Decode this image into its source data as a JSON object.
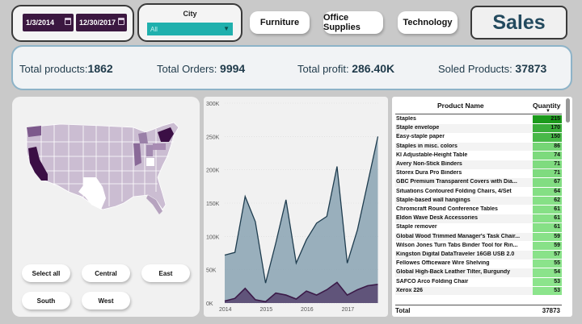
{
  "filters": {
    "start_date": "1/3/2014",
    "end_date": "12/30/2017",
    "city_title": "City",
    "city_value": "All"
  },
  "categories": [
    "Furniture",
    "Office Supplies",
    "Technology"
  ],
  "sales_button": "Sales",
  "kpis": {
    "total_products_label": "Total products:",
    "total_products_value": "1862",
    "total_orders_label": "Total Orders:",
    "total_orders_value": "9994",
    "total_profit_label": "Total profit:",
    "total_profit_value": "286.40K",
    "soled_products_label": "Soled Products:",
    "soled_products_value": "37873"
  },
  "regions": [
    "Select all",
    "Central",
    "East",
    "South",
    "West"
  ],
  "colors": {
    "area_fill": "#8aa3b3",
    "area_line": "#1f3d4f",
    "profit_fill": "#5a4a72",
    "profit_line": "#3b1a48",
    "map_dark": "#3b0f45",
    "bar_dark": "#1b9a1b",
    "bar_light": "#8ee58e"
  },
  "chart_data": {
    "type": "area",
    "x": [
      2014.0,
      2014.25,
      2014.5,
      2014.75,
      2015.0,
      2015.25,
      2015.5,
      2015.75,
      2016.0,
      2016.25,
      2016.5,
      2016.75,
      2017.0,
      2017.25,
      2017.5,
      2017.75
    ],
    "series": [
      {
        "values": [
          72000,
          76000,
          160000,
          122000,
          30000,
          90000,
          155000,
          60000,
          95000,
          120000,
          130000,
          205000,
          60000,
          110000,
          180000,
          250000
        ]
      },
      {
        "values": [
          3000,
          7000,
          22000,
          5000,
          2000,
          15000,
          12000,
          6000,
          18000,
          12000,
          20000,
          31000,
          12000,
          20000,
          26000,
          28000
        ]
      }
    ],
    "x_ticks": [
      "2014",
      "2015",
      "2016",
      "2017"
    ],
    "y_ticks": [
      "0K",
      "50K",
      "100K",
      "150K",
      "200K",
      "250K",
      "300K"
    ],
    "ylim": [
      0,
      300000
    ],
    "xlim": [
      2014.0,
      2017.8
    ]
  },
  "table": {
    "col_name": "Product Name",
    "col_qty": "Quantity",
    "rows": [
      {
        "name": "Staples",
        "qty": 215
      },
      {
        "name": "Staple envelope",
        "qty": 170
      },
      {
        "name": "Easy-staple paper",
        "qty": 150
      },
      {
        "name": "Staples in misc. colors",
        "qty": 86
      },
      {
        "name": "KI Adjustable-Height Table",
        "qty": 74
      },
      {
        "name": "Avery Non-Stick Binders",
        "qty": 71
      },
      {
        "name": "Storex Dura Pro Binders",
        "qty": 71
      },
      {
        "name": "GBC Premium Transparent Covers with Dia...",
        "qty": 67
      },
      {
        "name": "Situations Contoured Folding Chairs, 4/Set",
        "qty": 64
      },
      {
        "name": "Staple-based wall hangings",
        "qty": 62
      },
      {
        "name": "Chromcraft Round Conference Tables",
        "qty": 61
      },
      {
        "name": "Eldon Wave Desk Accessories",
        "qty": 61
      },
      {
        "name": "Staple remover",
        "qty": 61
      },
      {
        "name": "Global Wood Trimmed Manager's Task Chair...",
        "qty": 59
      },
      {
        "name": "Wilson Jones Turn Tabs Binder Tool for Rin...",
        "qty": 59
      },
      {
        "name": "Kingston Digital DataTraveler 16GB USB 2.0",
        "qty": 57
      },
      {
        "name": "Fellowes Officeware Wire Shelving",
        "qty": 55
      },
      {
        "name": "Global High-Back Leather Tilter, Burgundy",
        "qty": 54
      },
      {
        "name": "SAFCO Arco Folding Chair",
        "qty": 53
      },
      {
        "name": "Xerox 226",
        "qty": 53
      }
    ],
    "total_label": "Total",
    "total_value": "37873"
  }
}
